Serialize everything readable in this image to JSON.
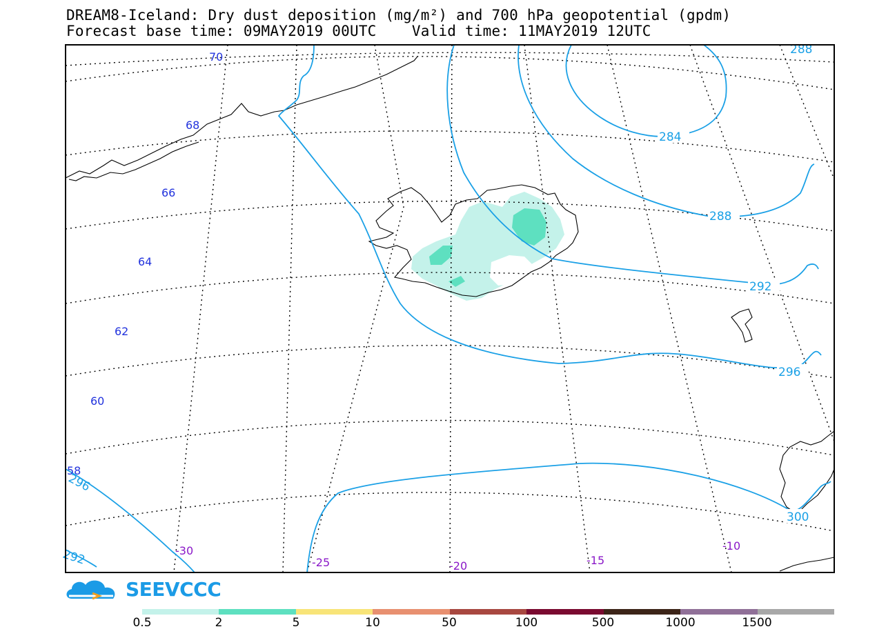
{
  "title": {
    "line1": "DREAM8-Iceland: Dry dust deposition (mg/m²) and 700 hPa geopotential (gpdm)",
    "line2": "Forecast base time: 09MAY2019 00UTC    Valid time: 11MAY2019 12UTC"
  },
  "map": {
    "lat_labels": [
      "70",
      "68",
      "66",
      "64",
      "62",
      "60",
      "58"
    ],
    "lon_labels": [
      "-30",
      "-25",
      "-20",
      "-15",
      "-10"
    ],
    "contour_labels": [
      "288",
      "284",
      "288",
      "292",
      "296",
      "300",
      "296",
      "292"
    ],
    "contour_color": "#1aa0e6",
    "coast_color": "#000000"
  },
  "logo": {
    "text": "SEEVCCC"
  },
  "legend": {
    "labels": [
      "0.5",
      "2",
      "5",
      "10",
      "50",
      "100",
      "500",
      "1000",
      "1500"
    ],
    "colors": [
      "#c4f2ea",
      "#5ee0c0",
      "#f8e478",
      "#e89070",
      "#a84840",
      "#7a0a30",
      "#3c2418",
      "#907098",
      "#a8a8a8"
    ]
  }
}
